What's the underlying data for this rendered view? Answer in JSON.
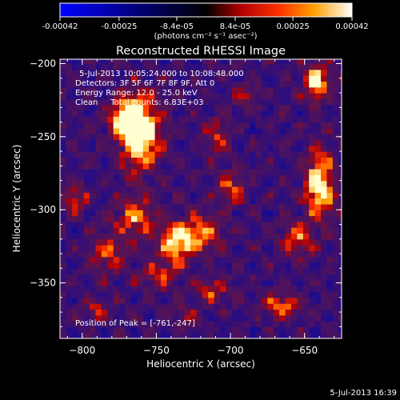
{
  "chart_data": {
    "type": "heatmap",
    "title": "Reconstructed RHESSI Image",
    "xlabel": "Heliocentric X (arcsec)",
    "ylabel": "Heliocentric Y (arcsec)",
    "xlim": [
      -815,
      -625
    ],
    "ylim": [
      -388,
      -197
    ],
    "x_ticks": [
      -800,
      -750,
      -700,
      -650
    ],
    "y_ticks": [
      -200,
      -250,
      -300,
      -350
    ],
    "colorbar": {
      "min": -0.00042,
      "max": 0.00042,
      "ticks": [
        "-0.00042",
        "-0.00025",
        "-8.4e-05",
        "8.4e-05",
        "0.00025",
        "0.00042"
      ],
      "tick_values": [
        -0.00042,
        -0.00025,
        -8.4e-05,
        8.4e-05,
        0.00025,
        0.00042
      ],
      "unit_label": "(photons cm⁻² s⁻¹ asec⁻²)"
    },
    "annotations": [
      "5-Jul-2013 10:05:24.000 to 10:08:48.000",
      "Detectors: 3F 5F 6F 7F 8F 9F, Att 0",
      "Energy Range: 12.0 - 25.0 keV",
      "Clean     Total counts: 6.83E+03"
    ],
    "peak_label": "Position of Peak = [-761,-247]",
    "peak": {
      "x": -761,
      "y": -247
    },
    "sources": [
      {
        "x": -761,
        "y": -247,
        "sx": 9,
        "sy": 17,
        "amp": 1.0
      },
      {
        "x": -772,
        "y": -236,
        "sx": 7,
        "sy": 9,
        "amp": 0.55
      },
      {
        "x": -736,
        "y": -322,
        "sx": 9,
        "sy": 10,
        "amp": 0.75
      },
      {
        "x": -765,
        "y": -305,
        "sx": 10,
        "sy": 9,
        "amp": 0.5
      },
      {
        "x": -782,
        "y": -330,
        "sx": 8,
        "sy": 9,
        "amp": 0.45
      },
      {
        "x": -748,
        "y": -345,
        "sx": 9,
        "sy": 6,
        "amp": 0.45
      },
      {
        "x": -709,
        "y": -250,
        "sx": 6,
        "sy": 9,
        "amp": 0.4
      },
      {
        "x": -700,
        "y": -285,
        "sx": 7,
        "sy": 8,
        "amp": 0.45
      },
      {
        "x": -717,
        "y": -315,
        "sx": 8,
        "sy": 8,
        "amp": 0.5
      },
      {
        "x": -642,
        "y": -212,
        "sx": 6,
        "sy": 9,
        "amp": 0.7
      },
      {
        "x": -640,
        "y": -283,
        "sx": 7,
        "sy": 16,
        "amp": 0.8
      },
      {
        "x": -655,
        "y": -320,
        "sx": 7,
        "sy": 8,
        "amp": 0.5
      },
      {
        "x": -665,
        "y": -365,
        "sx": 8,
        "sy": 6,
        "amp": 0.55
      },
      {
        "x": -712,
        "y": -355,
        "sx": 7,
        "sy": 6,
        "amp": 0.4
      },
      {
        "x": -805,
        "y": -292,
        "sx": 6,
        "sy": 7,
        "amp": 0.4
      },
      {
        "x": -790,
        "y": -368,
        "sx": 6,
        "sy": 5,
        "amp": 0.35
      },
      {
        "x": -730,
        "y": -372,
        "sx": 6,
        "sy": 5,
        "amp": 0.3
      },
      {
        "x": -690,
        "y": -222,
        "sx": 6,
        "sy": 6,
        "amp": 0.3
      }
    ]
  },
  "footer": {
    "timestamp": "5-Jul-2013 16:39"
  }
}
